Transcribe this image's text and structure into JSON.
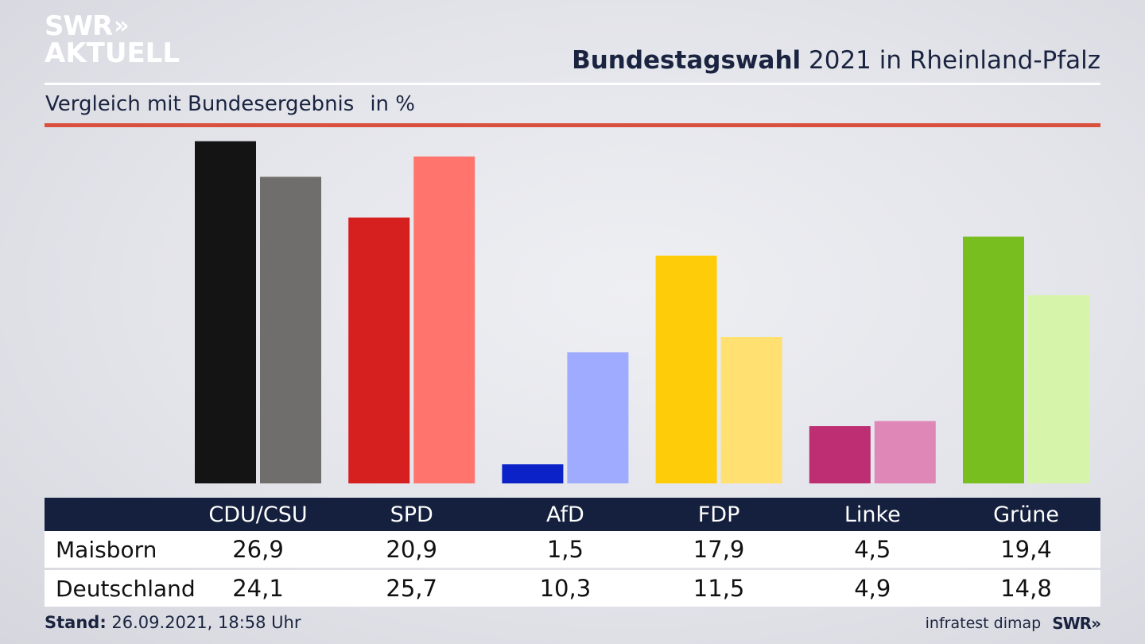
{
  "logo": {
    "line1": "SWR",
    "line1_chevrons": "»",
    "line2": "AKTUELL"
  },
  "header": {
    "title_bold": "Bundestagswahl",
    "title_rest": " 2021 in Rheinland-Pfalz",
    "subtitle": "Vergleich mit Bundesergebnis",
    "unit": "in %"
  },
  "chart_data": {
    "type": "bar",
    "categories": [
      "CDU/CSU",
      "SPD",
      "AfD",
      "FDP",
      "Linke",
      "Grüne"
    ],
    "series": [
      {
        "name": "Maisborn",
        "values": [
          26.9,
          20.9,
          1.5,
          17.9,
          4.5,
          19.4
        ],
        "value_labels": [
          "26,9",
          "20,9",
          "1,5",
          "17,9",
          "4,5",
          "19,4"
        ]
      },
      {
        "name": "Deutschland",
        "values": [
          24.1,
          25.7,
          10.3,
          11.5,
          4.9,
          14.8
        ],
        "value_labels": [
          "24,1",
          "25,7",
          "10,3",
          "11,5",
          "4,9",
          "14,8"
        ]
      }
    ],
    "colors": {
      "primary": [
        "#141414",
        "#d61f1f",
        "#0a22c8",
        "#ffcc0a",
        "#bd2e72",
        "#78be1e"
      ],
      "secondary": [
        "#706e6c",
        "#ff756d",
        "#9eabff",
        "#ffe070",
        "#df88b7",
        "#d6f5aa"
      ]
    },
    "ylim": [
      0,
      28
    ],
    "grid": false,
    "legend": "table-below"
  },
  "footer": {
    "stand_label": "Stand:",
    "stand_value": " 26.09.2021, 18:58 Uhr",
    "source": "infratest dimap",
    "brand": "SWR»"
  }
}
